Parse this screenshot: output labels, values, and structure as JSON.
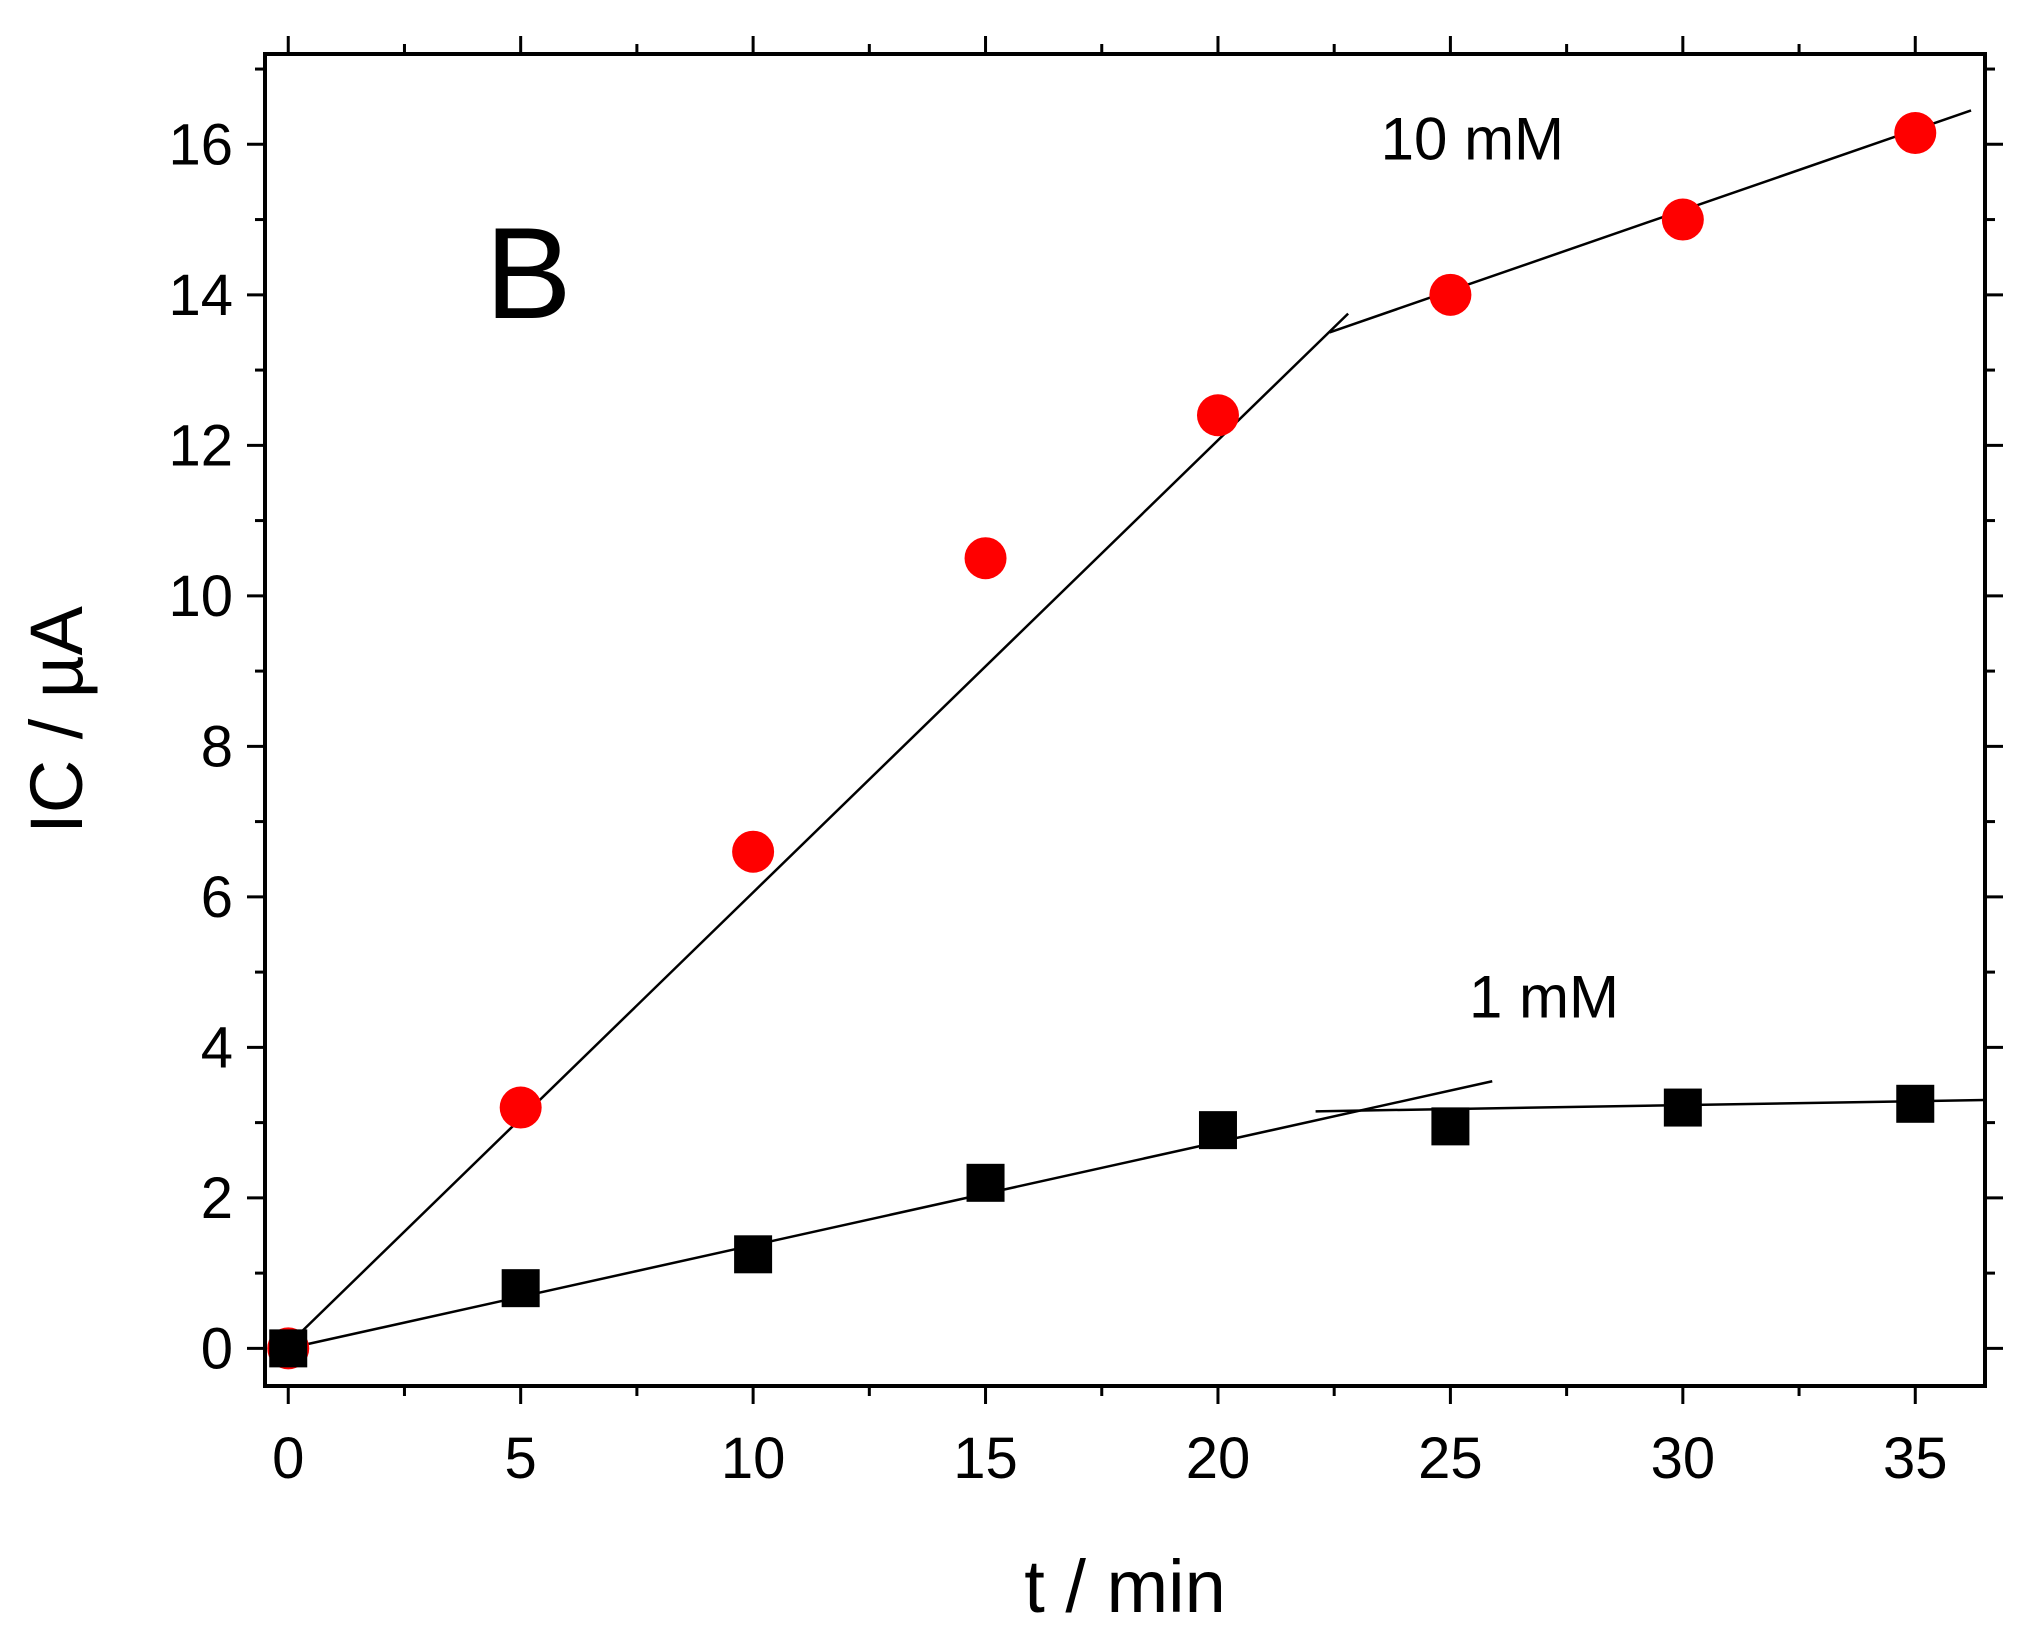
{
  "chart_data": {
    "type": "scatter",
    "panel_label": "B",
    "title": "",
    "xlabel": "t / min",
    "ylabel": "IC / µA",
    "xlim": [
      -0.5,
      36.5
    ],
    "ylim": [
      -0.5,
      17.2
    ],
    "xticks": [
      0,
      5,
      10,
      15,
      20,
      25,
      30,
      35
    ],
    "yticks": [
      0,
      2,
      4,
      6,
      8,
      10,
      12,
      14,
      16
    ],
    "x_minor_step": 2.5,
    "y_minor_step": 1,
    "grid": false,
    "series": [
      {
        "name": "10 mM",
        "label": "10 mM",
        "marker": "circle",
        "color": "#ff0000",
        "label_anchor": [
          23.5,
          15.8
        ],
        "x": [
          0,
          5,
          10,
          15,
          20,
          25,
          30,
          35
        ],
        "y": [
          0.0,
          3.2,
          6.6,
          10.5,
          12.4,
          14.0,
          15.0,
          16.15
        ],
        "fit_lines": [
          {
            "x": [
              0,
              22.8
            ],
            "y": [
              0.05,
              13.75
            ]
          },
          {
            "x": [
              22.4,
              36.2
            ],
            "y": [
              13.5,
              16.45
            ]
          }
        ]
      },
      {
        "name": "1 mM",
        "label": "1 mM",
        "marker": "square",
        "color": "#000000",
        "label_anchor": [
          25.4,
          4.4
        ],
        "x": [
          0,
          5,
          10,
          15,
          20,
          25,
          30,
          35
        ],
        "y": [
          0.0,
          0.8,
          1.25,
          2.2,
          2.9,
          2.95,
          3.2,
          3.25
        ],
        "fit_lines": [
          {
            "x": [
              0,
              25.9
            ],
            "y": [
              0.0,
              3.55
            ]
          },
          {
            "x": [
              22.1,
              36.5
            ],
            "y": [
              3.15,
              3.3
            ]
          }
        ]
      }
    ]
  }
}
